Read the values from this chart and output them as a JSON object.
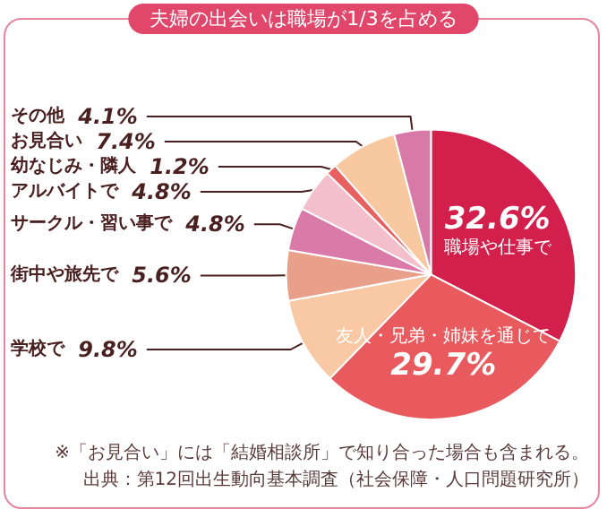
{
  "chart_data": {
    "type": "pie",
    "title": "夫婦の出会いは職場が1/3を占める",
    "categories": [
      "職場や仕事で",
      "友人・兄弟・姉妹を通じて",
      "学校で",
      "街中や旅先で",
      "サークル・習い事で",
      "アルバイトで",
      "幼なじみ・隣人",
      "お見合い",
      "その他"
    ],
    "values": [
      32.6,
      29.7,
      9.8,
      5.6,
      4.8,
      4.8,
      1.2,
      7.4,
      4.1
    ],
    "value_labels": [
      "32.6%",
      "29.7%",
      "9.8%",
      "5.6%",
      "4.8%",
      "4.8%",
      "1.2%",
      "7.4%",
      "4.1%"
    ],
    "colors": [
      "#d21f4c",
      "#e85a5e",
      "#f8c9a4",
      "#e8a08a",
      "#d97aa8",
      "#f4bfcc",
      "#e86060",
      "#f8c8a0",
      "#d87aa8"
    ],
    "legend": false,
    "annotations": [
      "※「お見合い」には「結婚相談所」で知り合った場合も含まれる。",
      "出典：第12回出生動向基本調査（社会保障・人口問題研究所）"
    ]
  }
}
